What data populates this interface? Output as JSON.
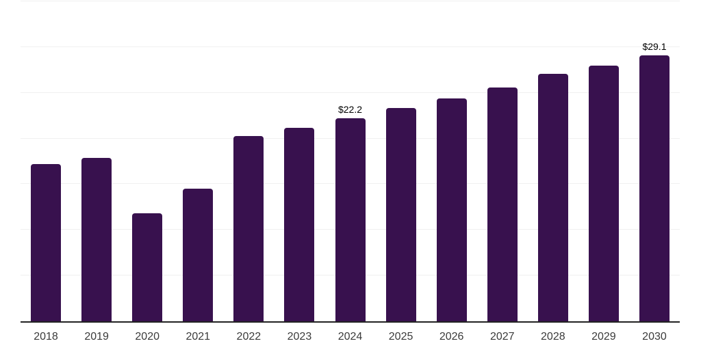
{
  "chart_data": {
    "type": "bar",
    "title": "",
    "xlabel": "",
    "ylabel": "",
    "categories": [
      "2018",
      "2019",
      "2020",
      "2021",
      "2022",
      "2023",
      "2024",
      "2025",
      "2026",
      "2027",
      "2028",
      "2029",
      "2030"
    ],
    "values": [
      17.2,
      17.9,
      11.8,
      14.5,
      20.3,
      21.2,
      22.2,
      23.3,
      24.4,
      25.6,
      27.1,
      28.0,
      29.1
    ],
    "value_labels": {
      "2024": "$22.2",
      "2030": "$29.1"
    },
    "ylim": [
      0,
      35
    ],
    "gridline_step": 5,
    "grid": true,
    "legend": "none",
    "y_axis_tick_labels": "none",
    "colors": {
      "bar": "#38114e",
      "grid": "#f0f0f0",
      "axis": "#222222",
      "value_label": "#000000",
      "tick_label": "#3a3a3a",
      "background": "#ffffff"
    }
  }
}
